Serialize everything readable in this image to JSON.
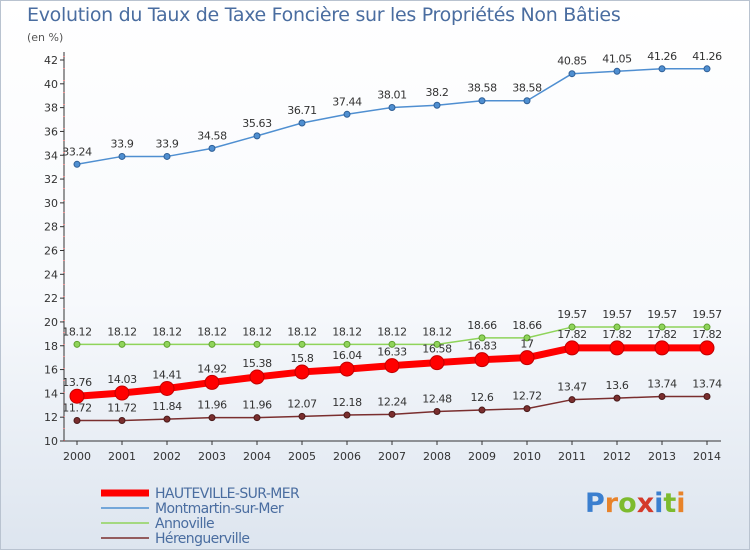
{
  "header": {
    "title": "Evolution du Taux de Taxe Foncière sur les Propriétés Non Bâties",
    "subtitle": "(en %)"
  },
  "logo": {
    "letters": [
      "P",
      "r",
      "o",
      "x",
      "i",
      "t",
      "i"
    ],
    "colors": [
      "#3b7fcf",
      "#e8832a",
      "#7dbb2e",
      "#d43a2a",
      "#3b7fcf",
      "#7dbb2e",
      "#e8832a"
    ]
  },
  "chart_data": {
    "type": "line",
    "title": "Evolution du Taux de Taxe Foncière sur les Propriétés Non Bâties",
    "ylabel": "(en %)",
    "xlabel": "",
    "ylim": [
      10,
      42
    ],
    "y_ticks": [
      10,
      12,
      14,
      16,
      18,
      20,
      22,
      24,
      26,
      28,
      30,
      32,
      34,
      36,
      38,
      40,
      42
    ],
    "categories": [
      "2000",
      "2001",
      "2002",
      "2003",
      "2004",
      "2005",
      "2006",
      "2007",
      "2008",
      "2009",
      "2010",
      "2011",
      "2012",
      "2013",
      "2014"
    ],
    "grid": false,
    "legend_position": "bottom-left",
    "series": [
      {
        "name": "HAUTEVILLE-SUR-MER",
        "color": "#ff0000",
        "values": [
          13.76,
          14.03,
          14.41,
          14.92,
          15.38,
          15.8,
          16.04,
          16.33,
          16.58,
          16.83,
          17,
          17.82,
          17.82,
          17.82,
          17.82
        ],
        "labels": [
          "13.76",
          "14.03",
          "14.41",
          "14.92",
          "15.38",
          "15.8",
          "16.04",
          "16.33",
          "16.58",
          "16.83",
          "17",
          "17.82",
          "17.82",
          "17.82",
          "17.82"
        ]
      },
      {
        "name": "Montmartin-sur-Mer",
        "color": "#4f8fd1",
        "values": [
          33.24,
          33.9,
          33.9,
          34.58,
          35.63,
          36.71,
          37.44,
          38.01,
          38.2,
          38.58,
          38.58,
          40.85,
          41.05,
          41.26,
          41.26
        ],
        "labels": [
          "33.24",
          "33.9",
          "33.9",
          "34.58",
          "35.63",
          "36.71",
          "37.44",
          "38.01",
          "38.2",
          "38.58",
          "38.58",
          "40.85",
          "41.05",
          "41.26",
          "41.26"
        ]
      },
      {
        "name": "Annoville",
        "color": "#8fd45a",
        "values": [
          18.12,
          18.12,
          18.12,
          18.12,
          18.12,
          18.12,
          18.12,
          18.12,
          18.12,
          18.66,
          18.66,
          19.57,
          19.57,
          19.57,
          19.57
        ],
        "labels": [
          "18.12",
          "18.12",
          "18.12",
          "18.12",
          "18.12",
          "18.12",
          "18.12",
          "18.12",
          "18.12",
          "18.66",
          "18.66",
          "19.57",
          "19.57",
          "19.57",
          "19.57"
        ]
      },
      {
        "name": "Hérenguerville",
        "color": "#7a2e2e",
        "values": [
          11.72,
          11.72,
          11.84,
          11.96,
          11.96,
          12.07,
          12.18,
          12.24,
          12.48,
          12.6,
          12.72,
          13.47,
          13.6,
          13.74,
          13.74
        ],
        "labels": [
          "11.72",
          "11.72",
          "11.84",
          "11.96",
          "11.96",
          "12.07",
          "12.18",
          "12.24",
          "12.48",
          "12.6",
          "12.72",
          "13.47",
          "13.6",
          "13.74",
          "13.74"
        ]
      }
    ]
  }
}
